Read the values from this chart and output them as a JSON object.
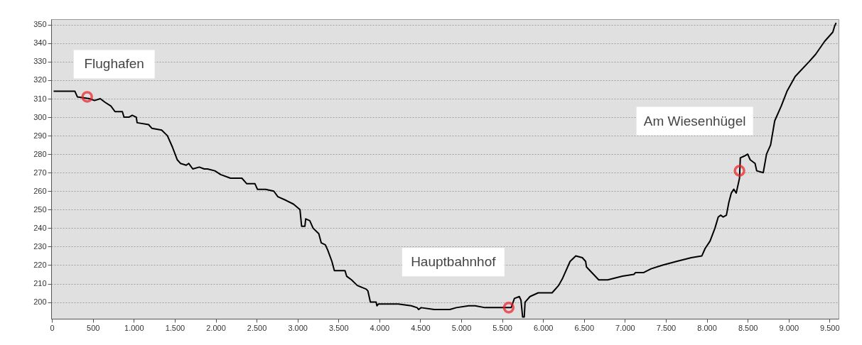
{
  "chart_data": {
    "type": "line",
    "x": [
      20,
      150,
      280,
      310,
      460,
      520,
      590,
      650,
      720,
      770,
      860,
      880,
      940,
      980,
      1030,
      1040,
      1180,
      1220,
      1340,
      1410,
      1470,
      1530,
      1570,
      1640,
      1670,
      1720,
      1800,
      1860,
      1900,
      1990,
      2060,
      2180,
      2250,
      2320,
      2380,
      2480,
      2510,
      2610,
      2710,
      2760,
      2860,
      2950,
      3030,
      3050,
      3090,
      3100,
      3150,
      3190,
      3260,
      3290,
      3340,
      3370,
      3420,
      3450,
      3580,
      3600,
      3660,
      3730,
      3840,
      3860,
      3890,
      3960,
      3970,
      3990,
      4230,
      4390,
      4460,
      4480,
      4510,
      4670,
      4680,
      4860,
      4940,
      5090,
      5170,
      5290,
      5490,
      5610,
      5650,
      5710,
      5730,
      5750,
      5770,
      5780,
      5840,
      5940,
      6010,
      6110,
      6190,
      6240,
      6330,
      6400,
      6480,
      6520,
      6530,
      6680,
      6790,
      6970,
      7110,
      7130,
      7230,
      7320,
      7460,
      7630,
      7810,
      7940,
      7980,
      8040,
      8100,
      8140,
      8170,
      8200,
      8240,
      8270,
      8300,
      8330,
      8360,
      8400,
      8410,
      8460,
      8500,
      8530,
      8590,
      8610,
      8690,
      8730,
      8780,
      8830,
      8910,
      8980,
      9080,
      9250,
      9330,
      9440,
      9540,
      9560,
      9580
    ],
    "series": [
      {
        "color": "#000000",
        "type": "line",
        "values": [
          314,
          314,
          314,
          311,
          310,
          309,
          310,
          308,
          306,
          303,
          303,
          300,
          300,
          301,
          300,
          297,
          296,
          294,
          293,
          290,
          284,
          277,
          275,
          274,
          275,
          272,
          273,
          272,
          272,
          271,
          269,
          267,
          267,
          267,
          264,
          264,
          261,
          261,
          260,
          257,
          255,
          253,
          250,
          241,
          241,
          245,
          244,
          240,
          237,
          232,
          231,
          228,
          222,
          217,
          217,
          214,
          212,
          209,
          207,
          206,
          200,
          200,
          198,
          199,
          199,
          198,
          197,
          196,
          197,
          196,
          196,
          196,
          197,
          198,
          198,
          197,
          197,
          197,
          202,
          203,
          201,
          192,
          192,
          200,
          203,
          205,
          205,
          205,
          209,
          213,
          222,
          225,
          224,
          222,
          219,
          212,
          212,
          214,
          215,
          216,
          216,
          218,
          220,
          222,
          224,
          225,
          229,
          233,
          240,
          246,
          247,
          246,
          247,
          254,
          259,
          261,
          259,
          267,
          278,
          279,
          280,
          277,
          275,
          271,
          270,
          280,
          285,
          298,
          306,
          314,
          322,
          330,
          334,
          341,
          346,
          349,
          351
        ]
      },
      {
        "type": "scatter",
        "color": "#ee1c25",
        "marker": "circle",
        "x": [
          430,
          5580,
          8400
        ],
        "values": [
          311,
          197,
          271
        ]
      }
    ],
    "xlim": [
      -10,
      9610
    ],
    "ylim": [
      191,
      353
    ],
    "xticks": [
      0,
      500,
      {
        "value": 1000,
        "label": "1.000"
      },
      {
        "value": 1500,
        "label": "1.500"
      },
      {
        "value": 2000,
        "label": "2.000"
      },
      {
        "value": 2500,
        "label": "2.500"
      },
      {
        "value": 3000,
        "label": "3.000"
      },
      {
        "value": 3500,
        "label": "3.500"
      },
      {
        "value": 4000,
        "label": "4.000"
      },
      {
        "value": 4500,
        "label": "4.500"
      },
      {
        "value": 5000,
        "label": "5.000"
      },
      {
        "value": 5500,
        "label": "5.500"
      },
      {
        "value": 6000,
        "label": "6.000"
      },
      {
        "value": 6500,
        "label": "6.500"
      },
      {
        "value": 7000,
        "label": "7.000"
      },
      {
        "value": 7500,
        "label": "7.500"
      },
      {
        "value": 8000,
        "label": "8.000"
      },
      {
        "value": 8500,
        "label": "8.500"
      },
      {
        "value": 9000,
        "label": "9.000"
      },
      {
        "value": 9500,
        "label": "9.500"
      }
    ],
    "yticks": [
      200,
      210,
      220,
      230,
      240,
      250,
      260,
      270,
      280,
      290,
      300,
      310,
      320,
      330,
      340,
      350
    ],
    "grid": "y",
    "legend": false,
    "marker": "none",
    "line_style": "solid",
    "annotations": [
      "Flughafen",
      "Hauptbahnhof",
      "Am Wiesenhügel"
    ]
  }
}
